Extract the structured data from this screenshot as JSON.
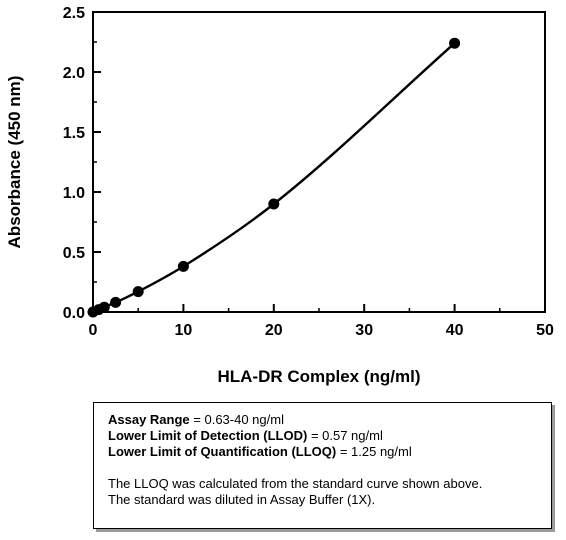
{
  "chart_data": {
    "type": "scatter",
    "title": "",
    "xlabel": "HLA-DR Complex (ng/ml)",
    "ylabel": "Absorbance (450 nm)",
    "xlim": [
      0,
      50
    ],
    "ylim": [
      0,
      2.5
    ],
    "x_ticks": [
      "0",
      "10",
      "20",
      "30",
      "40",
      "50"
    ],
    "y_ticks": [
      "0.0",
      "0.5",
      "1.0",
      "1.5",
      "2.0",
      "2.5"
    ],
    "grid": false,
    "fit_line": true,
    "series": [
      {
        "x": [
          0,
          0.63,
          1.25,
          2.5,
          5,
          10,
          20,
          40
        ],
        "y": [
          0.0,
          0.02,
          0.04,
          0.08,
          0.17,
          0.38,
          0.9,
          2.24
        ]
      }
    ],
    "colors": {
      "marker": "#000000",
      "line": "#000000"
    }
  },
  "info": {
    "range_label": "Assay Range",
    "range_value": " = 0.63-40 ng/ml",
    "llod_label": "Lower Limit of Detection (LLOD)",
    "llod_value": " =  0.57 ng/ml",
    "lloq_label": "Lower Limit of Quantification (LLOQ)",
    "lloq_value": " =  1.25 ng/ml",
    "note_1": "The LLOQ was calculated from the standard curve shown above.",
    "note_2": "The standard was diluted in Assay Buffer (1X)."
  }
}
